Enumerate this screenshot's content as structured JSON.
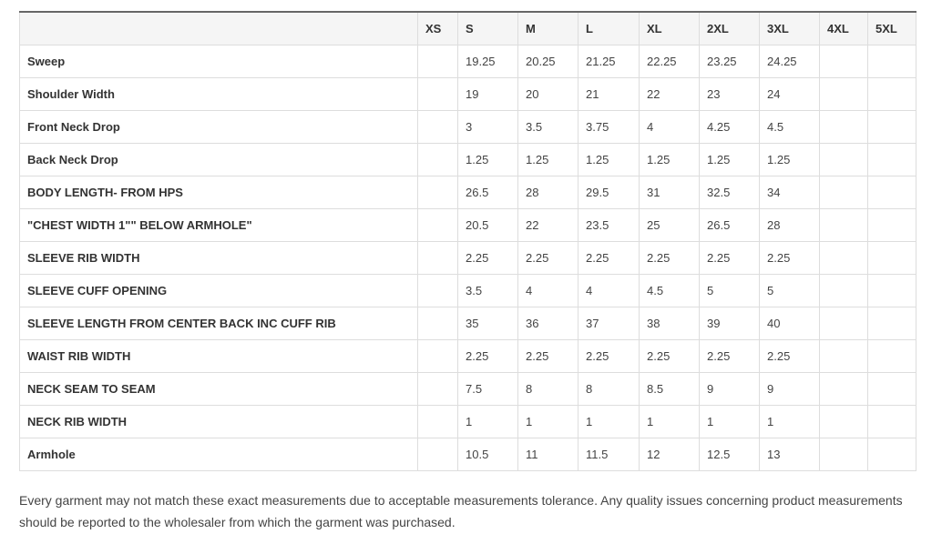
{
  "table": {
    "headers": [
      "",
      "XS",
      "S",
      "M",
      "L",
      "XL",
      "2XL",
      "3XL",
      "4XL",
      "5XL"
    ],
    "rows": [
      {
        "label": "Sweep",
        "values": [
          "",
          "19.25",
          "20.25",
          "21.25",
          "22.25",
          "23.25",
          "24.25",
          "",
          ""
        ]
      },
      {
        "label": "Shoulder Width",
        "values": [
          "",
          "19",
          "20",
          "21",
          "22",
          "23",
          "24",
          "",
          ""
        ]
      },
      {
        "label": "Front Neck Drop",
        "values": [
          "",
          "3",
          "3.5",
          "3.75",
          "4",
          "4.25",
          "4.5",
          "",
          ""
        ]
      },
      {
        "label": "Back Neck Drop",
        "values": [
          "",
          "1.25",
          "1.25",
          "1.25",
          "1.25",
          "1.25",
          "1.25",
          "",
          ""
        ]
      },
      {
        "label": "BODY LENGTH- FROM HPS",
        "values": [
          "",
          "26.5",
          "28",
          "29.5",
          "31",
          "32.5",
          "34",
          "",
          ""
        ]
      },
      {
        "label": "\"CHEST WIDTH 1\"\" BELOW ARMHOLE\"",
        "values": [
          "",
          "20.5",
          "22",
          "23.5",
          "25",
          "26.5",
          "28",
          "",
          ""
        ]
      },
      {
        "label": "SLEEVE RIB WIDTH",
        "values": [
          "",
          "2.25",
          "2.25",
          "2.25",
          "2.25",
          "2.25",
          "2.25",
          "",
          ""
        ]
      },
      {
        "label": "SLEEVE CUFF OPENING",
        "values": [
          "",
          "3.5",
          "4",
          "4",
          "4.5",
          "5",
          "5",
          "",
          ""
        ]
      },
      {
        "label": "SLEEVE LENGTH FROM CENTER BACK INC CUFF RIB",
        "values": [
          "",
          "35",
          "36",
          "37",
          "38",
          "39",
          "40",
          "",
          ""
        ]
      },
      {
        "label": "WAIST RIB WIDTH",
        "values": [
          "",
          "2.25",
          "2.25",
          "2.25",
          "2.25",
          "2.25",
          "2.25",
          "",
          ""
        ]
      },
      {
        "label": "NECK SEAM TO SEAM",
        "values": [
          "",
          "7.5",
          "8",
          "8",
          "8.5",
          "9",
          "9",
          "",
          ""
        ]
      },
      {
        "label": "NECK RIB WIDTH",
        "values": [
          "",
          "1",
          "1",
          "1",
          "1",
          "1",
          "1",
          "",
          ""
        ]
      },
      {
        "label": "Armhole",
        "values": [
          "",
          "10.5",
          "11",
          "11.5",
          "12",
          "12.5",
          "13",
          "",
          ""
        ]
      }
    ]
  },
  "note": "Every garment may not match these exact measurements due to acceptable measurements tolerance. Any quality issues concerning product measurements should be reported to the wholesaler from which the garment was purchased."
}
